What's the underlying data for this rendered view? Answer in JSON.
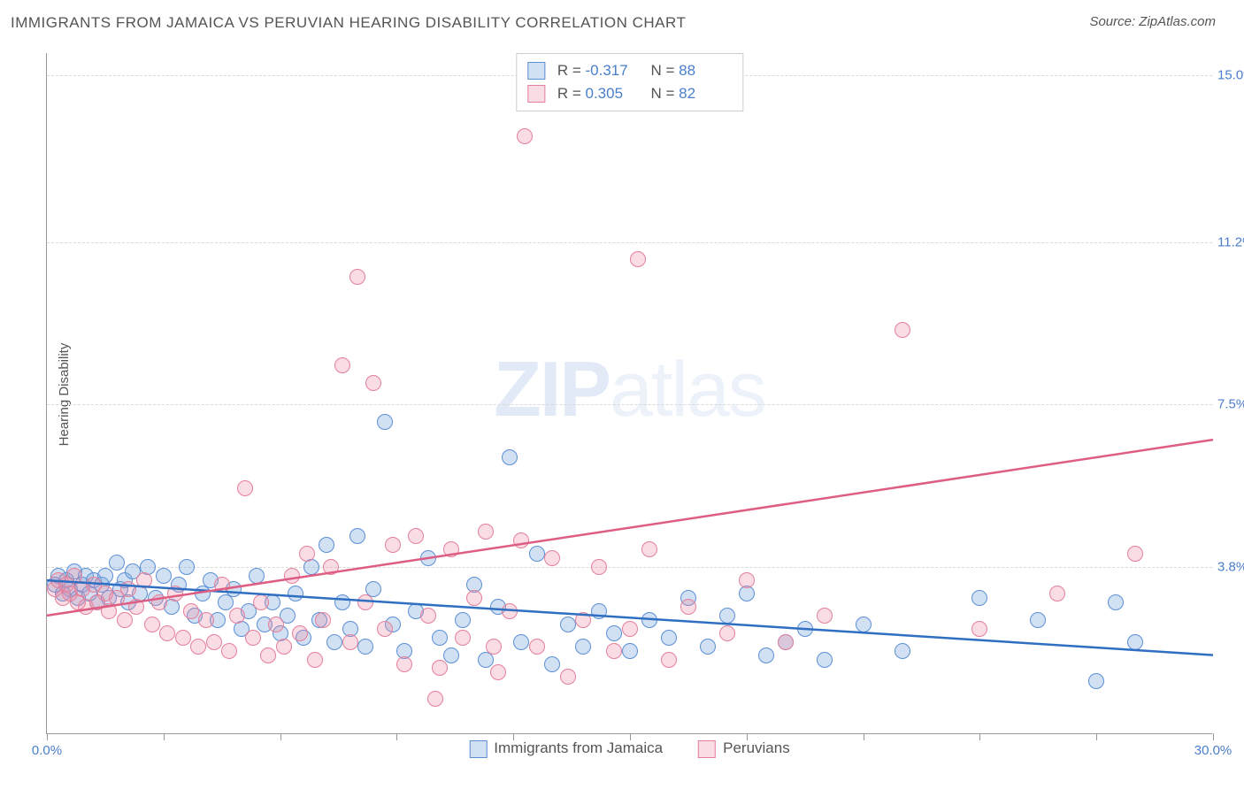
{
  "title": "IMMIGRANTS FROM JAMAICA VS PERUVIAN HEARING DISABILITY CORRELATION CHART",
  "source": "Source: ZipAtlas.com",
  "ylabel": "Hearing Disability",
  "watermark_a": "ZIP",
  "watermark_b": "atlas",
  "chart": {
    "type": "scatter",
    "xlim": [
      0,
      30
    ],
    "ylim": [
      0,
      15.5
    ],
    "x_ticks": [
      0,
      3,
      6,
      9,
      12,
      15,
      18,
      21,
      24,
      27,
      30
    ],
    "x_tick_labels": {
      "0": "0.0%",
      "30": "30.0%"
    },
    "y_gridlines": [
      3.8,
      7.5,
      11.2,
      15.0
    ],
    "y_tick_labels": [
      "3.8%",
      "7.5%",
      "11.2%",
      "15.0%"
    ],
    "background_color": "#ffffff",
    "grid_color": "#d9d9d9",
    "axis_color": "#999999",
    "tick_label_color": "#4a7ecc",
    "series": [
      {
        "name": "Immigrants from Jamaica",
        "fill": "rgba(124,168,222,0.35)",
        "stroke": "#5b8fd6",
        "line_color": "#2f6fc2",
        "marker_radius": 9,
        "R": "-0.317",
        "N": "88",
        "trend": {
          "x1": 0,
          "y1": 3.5,
          "x2": 30,
          "y2": 1.8
        },
        "points": [
          [
            0.2,
            3.4
          ],
          [
            0.3,
            3.6
          ],
          [
            0.4,
            3.2
          ],
          [
            0.5,
            3.5
          ],
          [
            0.6,
            3.3
          ],
          [
            0.7,
            3.7
          ],
          [
            0.8,
            3.1
          ],
          [
            0.9,
            3.4
          ],
          [
            1.0,
            3.6
          ],
          [
            1.1,
            3.2
          ],
          [
            1.2,
            3.5
          ],
          [
            1.3,
            3.0
          ],
          [
            1.4,
            3.4
          ],
          [
            1.5,
            3.6
          ],
          [
            1.6,
            3.1
          ],
          [
            1.8,
            3.9
          ],
          [
            1.9,
            3.3
          ],
          [
            2.0,
            3.5
          ],
          [
            2.1,
            3.0
          ],
          [
            2.2,
            3.7
          ],
          [
            2.4,
            3.2
          ],
          [
            2.6,
            3.8
          ],
          [
            2.8,
            3.1
          ],
          [
            3.0,
            3.6
          ],
          [
            3.2,
            2.9
          ],
          [
            3.4,
            3.4
          ],
          [
            3.6,
            3.8
          ],
          [
            3.8,
            2.7
          ],
          [
            4.0,
            3.2
          ],
          [
            4.2,
            3.5
          ],
          [
            4.4,
            2.6
          ],
          [
            4.6,
            3.0
          ],
          [
            4.8,
            3.3
          ],
          [
            5.0,
            2.4
          ],
          [
            5.2,
            2.8
          ],
          [
            5.4,
            3.6
          ],
          [
            5.6,
            2.5
          ],
          [
            5.8,
            3.0
          ],
          [
            6.0,
            2.3
          ],
          [
            6.2,
            2.7
          ],
          [
            6.4,
            3.2
          ],
          [
            6.6,
            2.2
          ],
          [
            6.8,
            3.8
          ],
          [
            7.0,
            2.6
          ],
          [
            7.2,
            4.3
          ],
          [
            7.4,
            2.1
          ],
          [
            7.6,
            3.0
          ],
          [
            7.8,
            2.4
          ],
          [
            8.0,
            4.5
          ],
          [
            8.2,
            2.0
          ],
          [
            8.4,
            3.3
          ],
          [
            8.7,
            7.1
          ],
          [
            8.9,
            2.5
          ],
          [
            9.2,
            1.9
          ],
          [
            9.5,
            2.8
          ],
          [
            9.8,
            4.0
          ],
          [
            10.1,
            2.2
          ],
          [
            10.4,
            1.8
          ],
          [
            10.7,
            2.6
          ],
          [
            11.0,
            3.4
          ],
          [
            11.3,
            1.7
          ],
          [
            11.6,
            2.9
          ],
          [
            11.9,
            6.3
          ],
          [
            12.2,
            2.1
          ],
          [
            12.6,
            4.1
          ],
          [
            13.0,
            1.6
          ],
          [
            13.4,
            2.5
          ],
          [
            13.8,
            2.0
          ],
          [
            14.2,
            2.8
          ],
          [
            14.6,
            2.3
          ],
          [
            15.0,
            1.9
          ],
          [
            15.5,
            2.6
          ],
          [
            16.0,
            2.2
          ],
          [
            16.5,
            3.1
          ],
          [
            17.0,
            2.0
          ],
          [
            17.5,
            2.7
          ],
          [
            18.0,
            3.2
          ],
          [
            18.5,
            1.8
          ],
          [
            19.0,
            2.1
          ],
          [
            19.5,
            2.4
          ],
          [
            20.0,
            1.7
          ],
          [
            21.0,
            2.5
          ],
          [
            22.0,
            1.9
          ],
          [
            24.0,
            3.1
          ],
          [
            25.5,
            2.6
          ],
          [
            27.0,
            1.2
          ],
          [
            27.5,
            3.0
          ],
          [
            28.0,
            2.1
          ]
        ]
      },
      {
        "name": "Peruvians",
        "fill": "rgba(236,140,165,0.30)",
        "stroke": "#e57f9a",
        "line_color": "#de5d82",
        "marker_radius": 9,
        "R": "0.305",
        "N": "82",
        "trend": {
          "x1": 0,
          "y1": 2.7,
          "x2": 30,
          "y2": 6.7
        },
        "points": [
          [
            0.2,
            3.3
          ],
          [
            0.3,
            3.5
          ],
          [
            0.4,
            3.1
          ],
          [
            0.5,
            3.4
          ],
          [
            0.6,
            3.2
          ],
          [
            0.7,
            3.6
          ],
          [
            0.8,
            3.0
          ],
          [
            0.9,
            3.3
          ],
          [
            1.0,
            2.9
          ],
          [
            1.2,
            3.4
          ],
          [
            1.3,
            3.0
          ],
          [
            1.5,
            3.2
          ],
          [
            1.6,
            2.8
          ],
          [
            1.8,
            3.1
          ],
          [
            2.0,
            2.6
          ],
          [
            2.1,
            3.3
          ],
          [
            2.3,
            2.9
          ],
          [
            2.5,
            3.5
          ],
          [
            2.7,
            2.5
          ],
          [
            2.9,
            3.0
          ],
          [
            3.1,
            2.3
          ],
          [
            3.3,
            3.2
          ],
          [
            3.5,
            2.2
          ],
          [
            3.7,
            2.8
          ],
          [
            3.9,
            2.0
          ],
          [
            4.1,
            2.6
          ],
          [
            4.3,
            2.1
          ],
          [
            4.5,
            3.4
          ],
          [
            4.7,
            1.9
          ],
          [
            4.9,
            2.7
          ],
          [
            5.1,
            5.6
          ],
          [
            5.3,
            2.2
          ],
          [
            5.5,
            3.0
          ],
          [
            5.7,
            1.8
          ],
          [
            5.9,
            2.5
          ],
          [
            6.1,
            2.0
          ],
          [
            6.3,
            3.6
          ],
          [
            6.5,
            2.3
          ],
          [
            6.7,
            4.1
          ],
          [
            6.9,
            1.7
          ],
          [
            7.1,
            2.6
          ],
          [
            7.3,
            3.8
          ],
          [
            7.6,
            8.4
          ],
          [
            7.8,
            2.1
          ],
          [
            8.0,
            10.4
          ],
          [
            8.2,
            3.0
          ],
          [
            8.4,
            8.0
          ],
          [
            8.7,
            2.4
          ],
          [
            8.9,
            4.3
          ],
          [
            9.2,
            1.6
          ],
          [
            9.5,
            4.5
          ],
          [
            9.8,
            2.7
          ],
          [
            10.1,
            1.5
          ],
          [
            10.4,
            4.2
          ],
          [
            10.7,
            2.2
          ],
          [
            11.0,
            3.1
          ],
          [
            11.3,
            4.6
          ],
          [
            11.6,
            1.4
          ],
          [
            11.9,
            2.8
          ],
          [
            12.2,
            4.4
          ],
          [
            12.3,
            13.6
          ],
          [
            12.6,
            2.0
          ],
          [
            13.0,
            4.0
          ],
          [
            13.4,
            1.3
          ],
          [
            13.8,
            2.6
          ],
          [
            14.2,
            3.8
          ],
          [
            14.6,
            1.9
          ],
          [
            15.0,
            2.4
          ],
          [
            15.2,
            10.8
          ],
          [
            15.5,
            4.2
          ],
          [
            16.0,
            1.7
          ],
          [
            16.5,
            2.9
          ],
          [
            17.5,
            2.3
          ],
          [
            18.0,
            3.5
          ],
          [
            19.0,
            2.1
          ],
          [
            20.0,
            2.7
          ],
          [
            22.0,
            9.2
          ],
          [
            24.0,
            2.4
          ],
          [
            26.0,
            3.2
          ],
          [
            28.0,
            4.1
          ],
          [
            10.0,
            0.8
          ],
          [
            11.5,
            2.0
          ]
        ]
      }
    ]
  },
  "legend_labels": {
    "R": "R =",
    "N": "N ="
  }
}
